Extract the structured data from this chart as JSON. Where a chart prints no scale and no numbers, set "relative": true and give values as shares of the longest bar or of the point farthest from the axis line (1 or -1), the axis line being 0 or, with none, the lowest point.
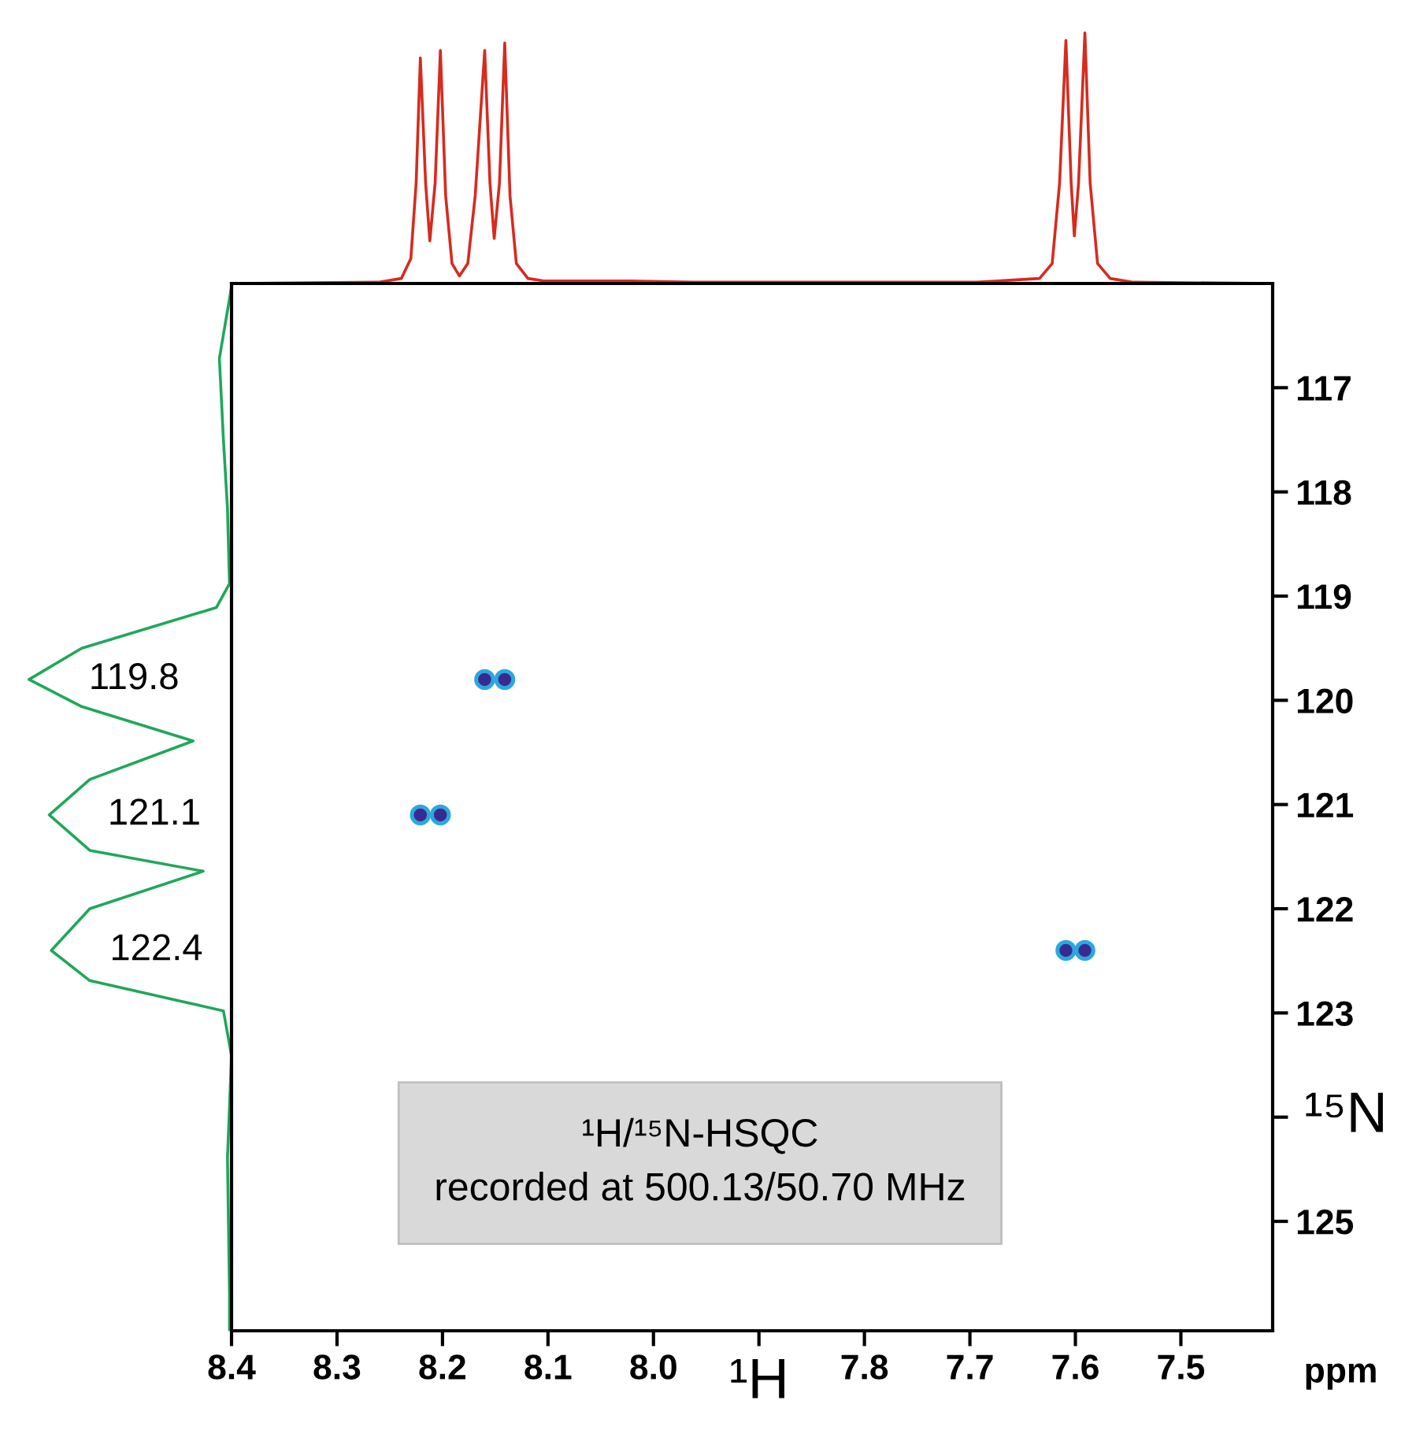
{
  "chart_data": [
    {
      "type": "line",
      "relative": true,
      "xlim": [
        8.4,
        7.413
      ],
      "series": [
        {
          "color": "#d62b1f",
          "x": [
            8.4,
            8.261,
            8.239,
            8.23,
            8.225,
            8.221,
            8.216,
            8.212,
            8.207,
            8.202,
            8.197,
            8.191,
            8.184,
            8.176,
            8.169,
            8.16,
            8.155,
            8.151,
            8.146,
            8.141,
            8.136,
            8.13,
            8.119,
            8.104,
            8.022,
            7.963,
            7.784,
            7.694,
            7.634,
            7.622,
            7.615,
            7.609,
            7.604,
            7.601,
            7.597,
            7.591,
            7.586,
            7.579,
            7.567,
            7.545,
            7.413
          ],
          "values": [
            0,
            0.005,
            0.02,
            0.1,
            0.4,
            0.9,
            0.4,
            0.17,
            0.4,
            0.93,
            0.35,
            0.08,
            0.03,
            0.08,
            0.35,
            0.93,
            0.4,
            0.18,
            0.4,
            0.96,
            0.35,
            0.08,
            0.02,
            0.01,
            0.01,
            0.005,
            0.005,
            0.005,
            0.02,
            0.08,
            0.4,
            0.97,
            0.4,
            0.19,
            0.4,
            1.0,
            0.4,
            0.08,
            0.02,
            0.005,
            0
          ]
        }
      ]
    },
    {
      "type": "line",
      "orientation": "horizontal",
      "relative": true,
      "ylim": [
        126.05,
        116.0
      ],
      "series": [
        {
          "color": "#1fa85a",
          "x": [
            116.03,
            116.72,
            117.5,
            118.16,
            118.88,
            119.11,
            119.5,
            119.8,
            120.06,
            120.39,
            120.76,
            121.1,
            121.44,
            121.64,
            122.0,
            122.4,
            122.69,
            122.98,
            123.41,
            124.39,
            125.7,
            126.05
          ],
          "values": [
            0,
            -0.06,
            -0.04,
            -0.02,
            -0.01,
            -0.075,
            -0.74,
            -1.0,
            -0.74,
            -0.19,
            -0.7,
            -0.9,
            -0.7,
            -0.14,
            -0.7,
            -0.89,
            -0.7,
            -0.04,
            0,
            -0.02,
            -0.01,
            -0.01
          ]
        }
      ],
      "annotations": [
        "119.8",
        "121.1",
        "122.4"
      ]
    },
    {
      "type": "scatter",
      "xlim": [
        8.4,
        7.413
      ],
      "ylim": [
        126.05,
        116.0
      ],
      "x": [
        8.221,
        8.202,
        8.16,
        8.141,
        7.609,
        7.591
      ],
      "values": [
        121.1,
        121.1,
        119.8,
        119.8,
        122.4,
        122.4
      ],
      "color": "#3a2a8f",
      "marker": "circle",
      "xticks": [
        8.4,
        8.3,
        8.2,
        8.1,
        {
          "value": 8.0,
          "label": "8.0"
        },
        {
          "value": 7.9,
          "label": null
        },
        7.8,
        7.7,
        7.6,
        7.5
      ],
      "yticks": [
        117,
        118,
        119,
        120,
        121,
        122,
        123,
        {
          "value": 124,
          "label": null
        },
        125
      ],
      "xlabel": "¹H",
      "ylabel": "¹⁵N",
      "grid": false,
      "annotations": [
        "ppm",
        "¹H/¹⁵N-HSQC\nrecorded at 500.13/50.70 MHz"
      ]
    }
  ]
}
